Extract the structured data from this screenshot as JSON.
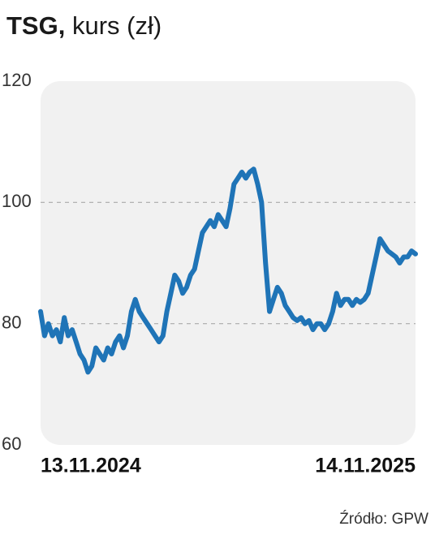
{
  "chart_data": {
    "type": "line",
    "title": "TSG,",
    "subtitle": "kurs (zł)",
    "source": "Źródło: GPW",
    "categories": [
      "13.11.2024",
      null,
      null,
      null,
      null,
      null,
      null,
      null,
      null,
      null,
      null,
      null,
      null,
      null,
      null,
      null,
      null,
      null,
      null,
      null,
      null,
      null,
      null,
      null,
      null,
      null,
      null,
      null,
      null,
      null,
      null,
      null,
      null,
      null,
      null,
      null,
      null,
      null,
      null,
      null,
      null,
      null,
      null,
      null,
      null,
      null,
      null,
      null,
      null,
      null,
      null,
      null,
      null,
      null,
      null,
      null,
      null,
      null,
      null,
      null,
      null,
      null,
      null,
      null,
      null,
      null,
      null,
      null,
      null,
      null,
      null,
      null,
      null,
      null,
      null,
      null,
      null,
      null,
      null,
      null,
      null,
      null,
      null,
      null,
      null,
      null,
      null,
      null,
      null,
      null,
      null,
      null,
      null,
      null,
      null,
      "14.11.2025"
    ],
    "series": [
      {
        "name": "TSG",
        "color": "#1f74b7",
        "values": [
          82,
          78,
          80,
          78,
          79,
          77,
          81,
          78,
          79,
          77,
          75,
          74,
          72,
          73,
          76,
          75,
          74,
          76,
          75,
          77,
          78,
          76,
          78,
          82,
          84,
          82,
          81,
          80,
          79,
          78,
          77,
          78,
          82,
          85,
          88,
          87,
          85,
          86,
          88,
          89,
          92,
          95,
          96,
          97,
          96,
          98,
          97,
          96,
          99,
          103,
          104,
          105,
          104,
          105,
          105.5,
          103,
          100,
          90,
          82,
          84,
          86,
          85,
          83,
          82,
          81,
          80.5,
          81,
          80,
          80.5,
          79,
          80,
          80,
          79,
          80,
          82,
          85,
          83,
          84,
          84,
          83,
          84,
          83.5,
          84,
          85,
          88,
          91,
          94,
          93,
          92,
          91.5,
          91,
          90,
          91,
          91,
          92,
          91.5
        ]
      }
    ],
    "ylim": [
      60,
      120
    ],
    "yticks": [
      60,
      80,
      100,
      120
    ],
    "grid": true
  }
}
